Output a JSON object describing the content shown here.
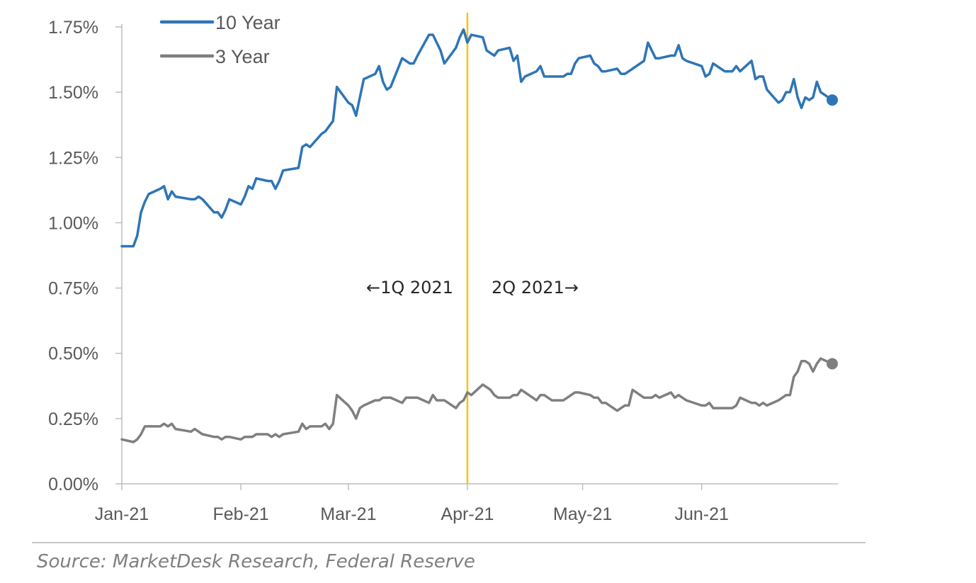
{
  "chart_data": {
    "type": "line",
    "title": "",
    "xlabel": "",
    "ylabel": "",
    "x_tick_labels": [
      "Jan-21",
      "Feb-21",
      "Mar-21",
      "Apr-21",
      "May-21",
      "Jun-21"
    ],
    "y_tick_labels": [
      "0.00%",
      "0.25%",
      "0.50%",
      "0.75%",
      "1.00%",
      "1.25%",
      "1.50%",
      "1.75%"
    ],
    "y_ticks": [
      0,
      0.25,
      0.5,
      0.75,
      1.0,
      1.25,
      1.5,
      1.75
    ],
    "ylim": [
      0,
      1.75
    ],
    "xlim": [
      "2021-01-01",
      "2021-06-30"
    ],
    "grid": false,
    "legend_position": "top-left",
    "series": [
      {
        "name": "10 Year",
        "color": "#2e75b6",
        "end_marker": true,
        "points": [
          [
            "2021-01-01",
            0.91
          ],
          [
            "2021-01-04",
            0.91
          ],
          [
            "2021-01-05",
            0.95
          ],
          [
            "2021-01-06",
            1.04
          ],
          [
            "2021-01-07",
            1.08
          ],
          [
            "2021-01-08",
            1.11
          ],
          [
            "2021-01-11",
            1.13
          ],
          [
            "2021-01-12",
            1.14
          ],
          [
            "2021-01-13",
            1.09
          ],
          [
            "2021-01-14",
            1.12
          ],
          [
            "2021-01-15",
            1.1
          ],
          [
            "2021-01-19",
            1.09
          ],
          [
            "2021-01-20",
            1.09
          ],
          [
            "2021-01-21",
            1.1
          ],
          [
            "2021-01-22",
            1.09
          ],
          [
            "2021-01-25",
            1.04
          ],
          [
            "2021-01-26",
            1.04
          ],
          [
            "2021-01-27",
            1.02
          ],
          [
            "2021-01-28",
            1.05
          ],
          [
            "2021-01-29",
            1.09
          ],
          [
            "2021-02-01",
            1.07
          ],
          [
            "2021-02-02",
            1.1
          ],
          [
            "2021-02-03",
            1.14
          ],
          [
            "2021-02-04",
            1.13
          ],
          [
            "2021-02-05",
            1.17
          ],
          [
            "2021-02-08",
            1.16
          ],
          [
            "2021-02-09",
            1.16
          ],
          [
            "2021-02-10",
            1.13
          ],
          [
            "2021-02-11",
            1.16
          ],
          [
            "2021-02-12",
            1.2
          ],
          [
            "2021-02-16",
            1.21
          ],
          [
            "2021-02-17",
            1.29
          ],
          [
            "2021-02-18",
            1.3
          ],
          [
            "2021-02-19",
            1.29
          ],
          [
            "2021-02-22",
            1.34
          ],
          [
            "2021-02-23",
            1.35
          ],
          [
            "2021-02-24",
            1.37
          ],
          [
            "2021-02-25",
            1.39
          ],
          [
            "2021-02-26",
            1.52
          ],
          [
            "2021-03-01",
            1.46
          ],
          [
            "2021-03-02",
            1.45
          ],
          [
            "2021-03-03",
            1.41
          ],
          [
            "2021-03-04",
            1.48
          ],
          [
            "2021-03-05",
            1.55
          ],
          [
            "2021-03-08",
            1.57
          ],
          [
            "2021-03-09",
            1.6
          ],
          [
            "2021-03-10",
            1.54
          ],
          [
            "2021-03-11",
            1.51
          ],
          [
            "2021-03-12",
            1.52
          ],
          [
            "2021-03-15",
            1.63
          ],
          [
            "2021-03-16",
            1.62
          ],
          [
            "2021-03-17",
            1.61
          ],
          [
            "2021-03-18",
            1.61
          ],
          [
            "2021-03-19",
            1.64
          ],
          [
            "2021-03-22",
            1.72
          ],
          [
            "2021-03-23",
            1.72
          ],
          [
            "2021-03-24",
            1.69
          ],
          [
            "2021-03-25",
            1.66
          ],
          [
            "2021-03-26",
            1.61
          ],
          [
            "2021-03-29",
            1.67
          ],
          [
            "2021-03-30",
            1.71
          ],
          [
            "2021-03-31",
            1.74
          ],
          [
            "2021-04-01",
            1.69
          ],
          [
            "2021-04-02",
            1.72
          ],
          [
            "2021-04-05",
            1.71
          ],
          [
            "2021-04-06",
            1.66
          ],
          [
            "2021-04-07",
            1.65
          ],
          [
            "2021-04-08",
            1.64
          ],
          [
            "2021-04-09",
            1.66
          ],
          [
            "2021-04-12",
            1.67
          ],
          [
            "2021-04-13",
            1.62
          ],
          [
            "2021-04-14",
            1.64
          ],
          [
            "2021-04-15",
            1.54
          ],
          [
            "2021-04-16",
            1.56
          ],
          [
            "2021-04-19",
            1.58
          ],
          [
            "2021-04-20",
            1.6
          ],
          [
            "2021-04-21",
            1.56
          ],
          [
            "2021-04-22",
            1.56
          ],
          [
            "2021-04-23",
            1.56
          ],
          [
            "2021-04-26",
            1.56
          ],
          [
            "2021-04-27",
            1.57
          ],
          [
            "2021-04-28",
            1.57
          ],
          [
            "2021-04-29",
            1.61
          ],
          [
            "2021-04-30",
            1.63
          ],
          [
            "2021-05-03",
            1.64
          ],
          [
            "2021-05-04",
            1.61
          ],
          [
            "2021-05-05",
            1.6
          ],
          [
            "2021-05-06",
            1.58
          ],
          [
            "2021-05-07",
            1.58
          ],
          [
            "2021-05-10",
            1.59
          ],
          [
            "2021-05-11",
            1.57
          ],
          [
            "2021-05-12",
            1.57
          ],
          [
            "2021-05-13",
            1.58
          ],
          [
            "2021-05-14",
            1.59
          ],
          [
            "2021-05-17",
            1.62
          ],
          [
            "2021-05-18",
            1.69
          ],
          [
            "2021-05-19",
            1.66
          ],
          [
            "2021-05-20",
            1.63
          ],
          [
            "2021-05-21",
            1.63
          ],
          [
            "2021-05-24",
            1.64
          ],
          [
            "2021-05-25",
            1.64
          ],
          [
            "2021-05-26",
            1.68
          ],
          [
            "2021-05-27",
            1.63
          ],
          [
            "2021-05-28",
            1.62
          ],
          [
            "2021-06-01",
            1.6
          ],
          [
            "2021-06-02",
            1.56
          ],
          [
            "2021-06-03",
            1.57
          ],
          [
            "2021-06-04",
            1.61
          ],
          [
            "2021-06-07",
            1.58
          ],
          [
            "2021-06-08",
            1.58
          ],
          [
            "2021-06-09",
            1.58
          ],
          [
            "2021-06-10",
            1.6
          ],
          [
            "2021-06-11",
            1.58
          ],
          [
            "2021-06-14",
            1.62
          ],
          [
            "2021-06-15",
            1.55
          ],
          [
            "2021-06-16",
            1.56
          ],
          [
            "2021-06-17",
            1.56
          ],
          [
            "2021-06-18",
            1.51
          ],
          [
            "2021-06-21",
            1.46
          ],
          [
            "2021-06-22",
            1.47
          ],
          [
            "2021-06-23",
            1.5
          ],
          [
            "2021-06-24",
            1.5
          ],
          [
            "2021-06-25",
            1.55
          ],
          [
            "2021-06-26",
            1.48
          ],
          [
            "2021-06-27",
            1.44
          ],
          [
            "2021-06-28",
            1.48
          ],
          [
            "2021-06-29",
            1.47
          ],
          [
            "2021-06-30",
            1.48
          ],
          [
            "2021-07-01",
            1.54
          ],
          [
            "2021-07-02",
            1.5
          ],
          [
            "2021-07-05",
            1.47
          ]
        ]
      },
      {
        "name": "3 Year",
        "color": "#7f7f7f",
        "end_marker": true,
        "points": [
          [
            "2021-01-01",
            0.17
          ],
          [
            "2021-01-04",
            0.16
          ],
          [
            "2021-01-05",
            0.17
          ],
          [
            "2021-01-06",
            0.19
          ],
          [
            "2021-01-07",
            0.22
          ],
          [
            "2021-01-08",
            0.22
          ],
          [
            "2021-01-11",
            0.22
          ],
          [
            "2021-01-12",
            0.23
          ],
          [
            "2021-01-13",
            0.22
          ],
          [
            "2021-01-14",
            0.23
          ],
          [
            "2021-01-15",
            0.21
          ],
          [
            "2021-01-19",
            0.2
          ],
          [
            "2021-01-20",
            0.21
          ],
          [
            "2021-01-21",
            0.2
          ],
          [
            "2021-01-22",
            0.19
          ],
          [
            "2021-01-25",
            0.18
          ],
          [
            "2021-01-26",
            0.18
          ],
          [
            "2021-01-27",
            0.17
          ],
          [
            "2021-01-28",
            0.18
          ],
          [
            "2021-01-29",
            0.18
          ],
          [
            "2021-02-01",
            0.17
          ],
          [
            "2021-02-02",
            0.18
          ],
          [
            "2021-02-03",
            0.18
          ],
          [
            "2021-02-04",
            0.18
          ],
          [
            "2021-02-05",
            0.19
          ],
          [
            "2021-02-08",
            0.19
          ],
          [
            "2021-02-09",
            0.18
          ],
          [
            "2021-02-10",
            0.19
          ],
          [
            "2021-02-11",
            0.18
          ],
          [
            "2021-02-12",
            0.19
          ],
          [
            "2021-02-16",
            0.2
          ],
          [
            "2021-02-17",
            0.23
          ],
          [
            "2021-02-18",
            0.21
          ],
          [
            "2021-02-19",
            0.22
          ],
          [
            "2021-02-22",
            0.22
          ],
          [
            "2021-02-23",
            0.23
          ],
          [
            "2021-02-24",
            0.21
          ],
          [
            "2021-02-25",
            0.23
          ],
          [
            "2021-02-26",
            0.34
          ],
          [
            "2021-03-01",
            0.3
          ],
          [
            "2021-03-02",
            0.28
          ],
          [
            "2021-03-03",
            0.25
          ],
          [
            "2021-03-04",
            0.29
          ],
          [
            "2021-03-05",
            0.3
          ],
          [
            "2021-03-08",
            0.32
          ],
          [
            "2021-03-09",
            0.32
          ],
          [
            "2021-03-10",
            0.33
          ],
          [
            "2021-03-11",
            0.33
          ],
          [
            "2021-03-12",
            0.33
          ],
          [
            "2021-03-15",
            0.31
          ],
          [
            "2021-03-16",
            0.33
          ],
          [
            "2021-03-17",
            0.33
          ],
          [
            "2021-03-18",
            0.33
          ],
          [
            "2021-03-19",
            0.33
          ],
          [
            "2021-03-22",
            0.31
          ],
          [
            "2021-03-23",
            0.34
          ],
          [
            "2021-03-24",
            0.32
          ],
          [
            "2021-03-25",
            0.32
          ],
          [
            "2021-03-26",
            0.32
          ],
          [
            "2021-03-29",
            0.29
          ],
          [
            "2021-03-30",
            0.31
          ],
          [
            "2021-03-31",
            0.32
          ],
          [
            "2021-04-01",
            0.35
          ],
          [
            "2021-04-02",
            0.34
          ],
          [
            "2021-04-05",
            0.38
          ],
          [
            "2021-04-06",
            0.37
          ],
          [
            "2021-04-07",
            0.36
          ],
          [
            "2021-04-08",
            0.34
          ],
          [
            "2021-04-09",
            0.33
          ],
          [
            "2021-04-12",
            0.33
          ],
          [
            "2021-04-13",
            0.34
          ],
          [
            "2021-04-14",
            0.34
          ],
          [
            "2021-04-15",
            0.36
          ],
          [
            "2021-04-16",
            0.35
          ],
          [
            "2021-04-19",
            0.32
          ],
          [
            "2021-04-20",
            0.34
          ],
          [
            "2021-04-21",
            0.34
          ],
          [
            "2021-04-22",
            0.33
          ],
          [
            "2021-04-23",
            0.32
          ],
          [
            "2021-04-26",
            0.32
          ],
          [
            "2021-04-27",
            0.33
          ],
          [
            "2021-04-28",
            0.34
          ],
          [
            "2021-04-29",
            0.35
          ],
          [
            "2021-04-30",
            0.35
          ],
          [
            "2021-05-03",
            0.34
          ],
          [
            "2021-05-04",
            0.33
          ],
          [
            "2021-05-05",
            0.33
          ],
          [
            "2021-05-06",
            0.31
          ],
          [
            "2021-05-07",
            0.31
          ],
          [
            "2021-05-10",
            0.28
          ],
          [
            "2021-05-11",
            0.29
          ],
          [
            "2021-05-12",
            0.3
          ],
          [
            "2021-05-13",
            0.3
          ],
          [
            "2021-05-14",
            0.36
          ],
          [
            "2021-05-17",
            0.33
          ],
          [
            "2021-05-18",
            0.33
          ],
          [
            "2021-05-19",
            0.33
          ],
          [
            "2021-05-20",
            0.34
          ],
          [
            "2021-05-21",
            0.33
          ],
          [
            "2021-05-24",
            0.35
          ],
          [
            "2021-05-25",
            0.33
          ],
          [
            "2021-05-26",
            0.34
          ],
          [
            "2021-05-27",
            0.33
          ],
          [
            "2021-05-28",
            0.32
          ],
          [
            "2021-06-01",
            0.3
          ],
          [
            "2021-06-02",
            0.3
          ],
          [
            "2021-06-03",
            0.31
          ],
          [
            "2021-06-04",
            0.29
          ],
          [
            "2021-06-07",
            0.29
          ],
          [
            "2021-06-08",
            0.29
          ],
          [
            "2021-06-09",
            0.29
          ],
          [
            "2021-06-10",
            0.3
          ],
          [
            "2021-06-11",
            0.33
          ],
          [
            "2021-06-14",
            0.31
          ],
          [
            "2021-06-15",
            0.31
          ],
          [
            "2021-06-16",
            0.3
          ],
          [
            "2021-06-17",
            0.31
          ],
          [
            "2021-06-18",
            0.3
          ],
          [
            "2021-06-21",
            0.32
          ],
          [
            "2021-06-22",
            0.33
          ],
          [
            "2021-06-23",
            0.34
          ],
          [
            "2021-06-24",
            0.34
          ],
          [
            "2021-06-25",
            0.41
          ],
          [
            "2021-06-26",
            0.43
          ],
          [
            "2021-06-27",
            0.47
          ],
          [
            "2021-06-28",
            0.47
          ],
          [
            "2021-06-29",
            0.46
          ],
          [
            "2021-06-30",
            0.43
          ],
          [
            "2021-07-01",
            0.46
          ],
          [
            "2021-07-02",
            0.48
          ],
          [
            "2021-07-05",
            0.46
          ]
        ]
      }
    ],
    "reference_line": {
      "x": "2021-04-01",
      "color": "#f2c40f"
    },
    "annotations": [
      {
        "text": "←1Q 2021",
        "side": "left-of-reference"
      },
      {
        "text": "2Q 2021→",
        "side": "right-of-reference"
      }
    ]
  },
  "source_text": "Source: MarketDesk Research, Federal Reserve"
}
